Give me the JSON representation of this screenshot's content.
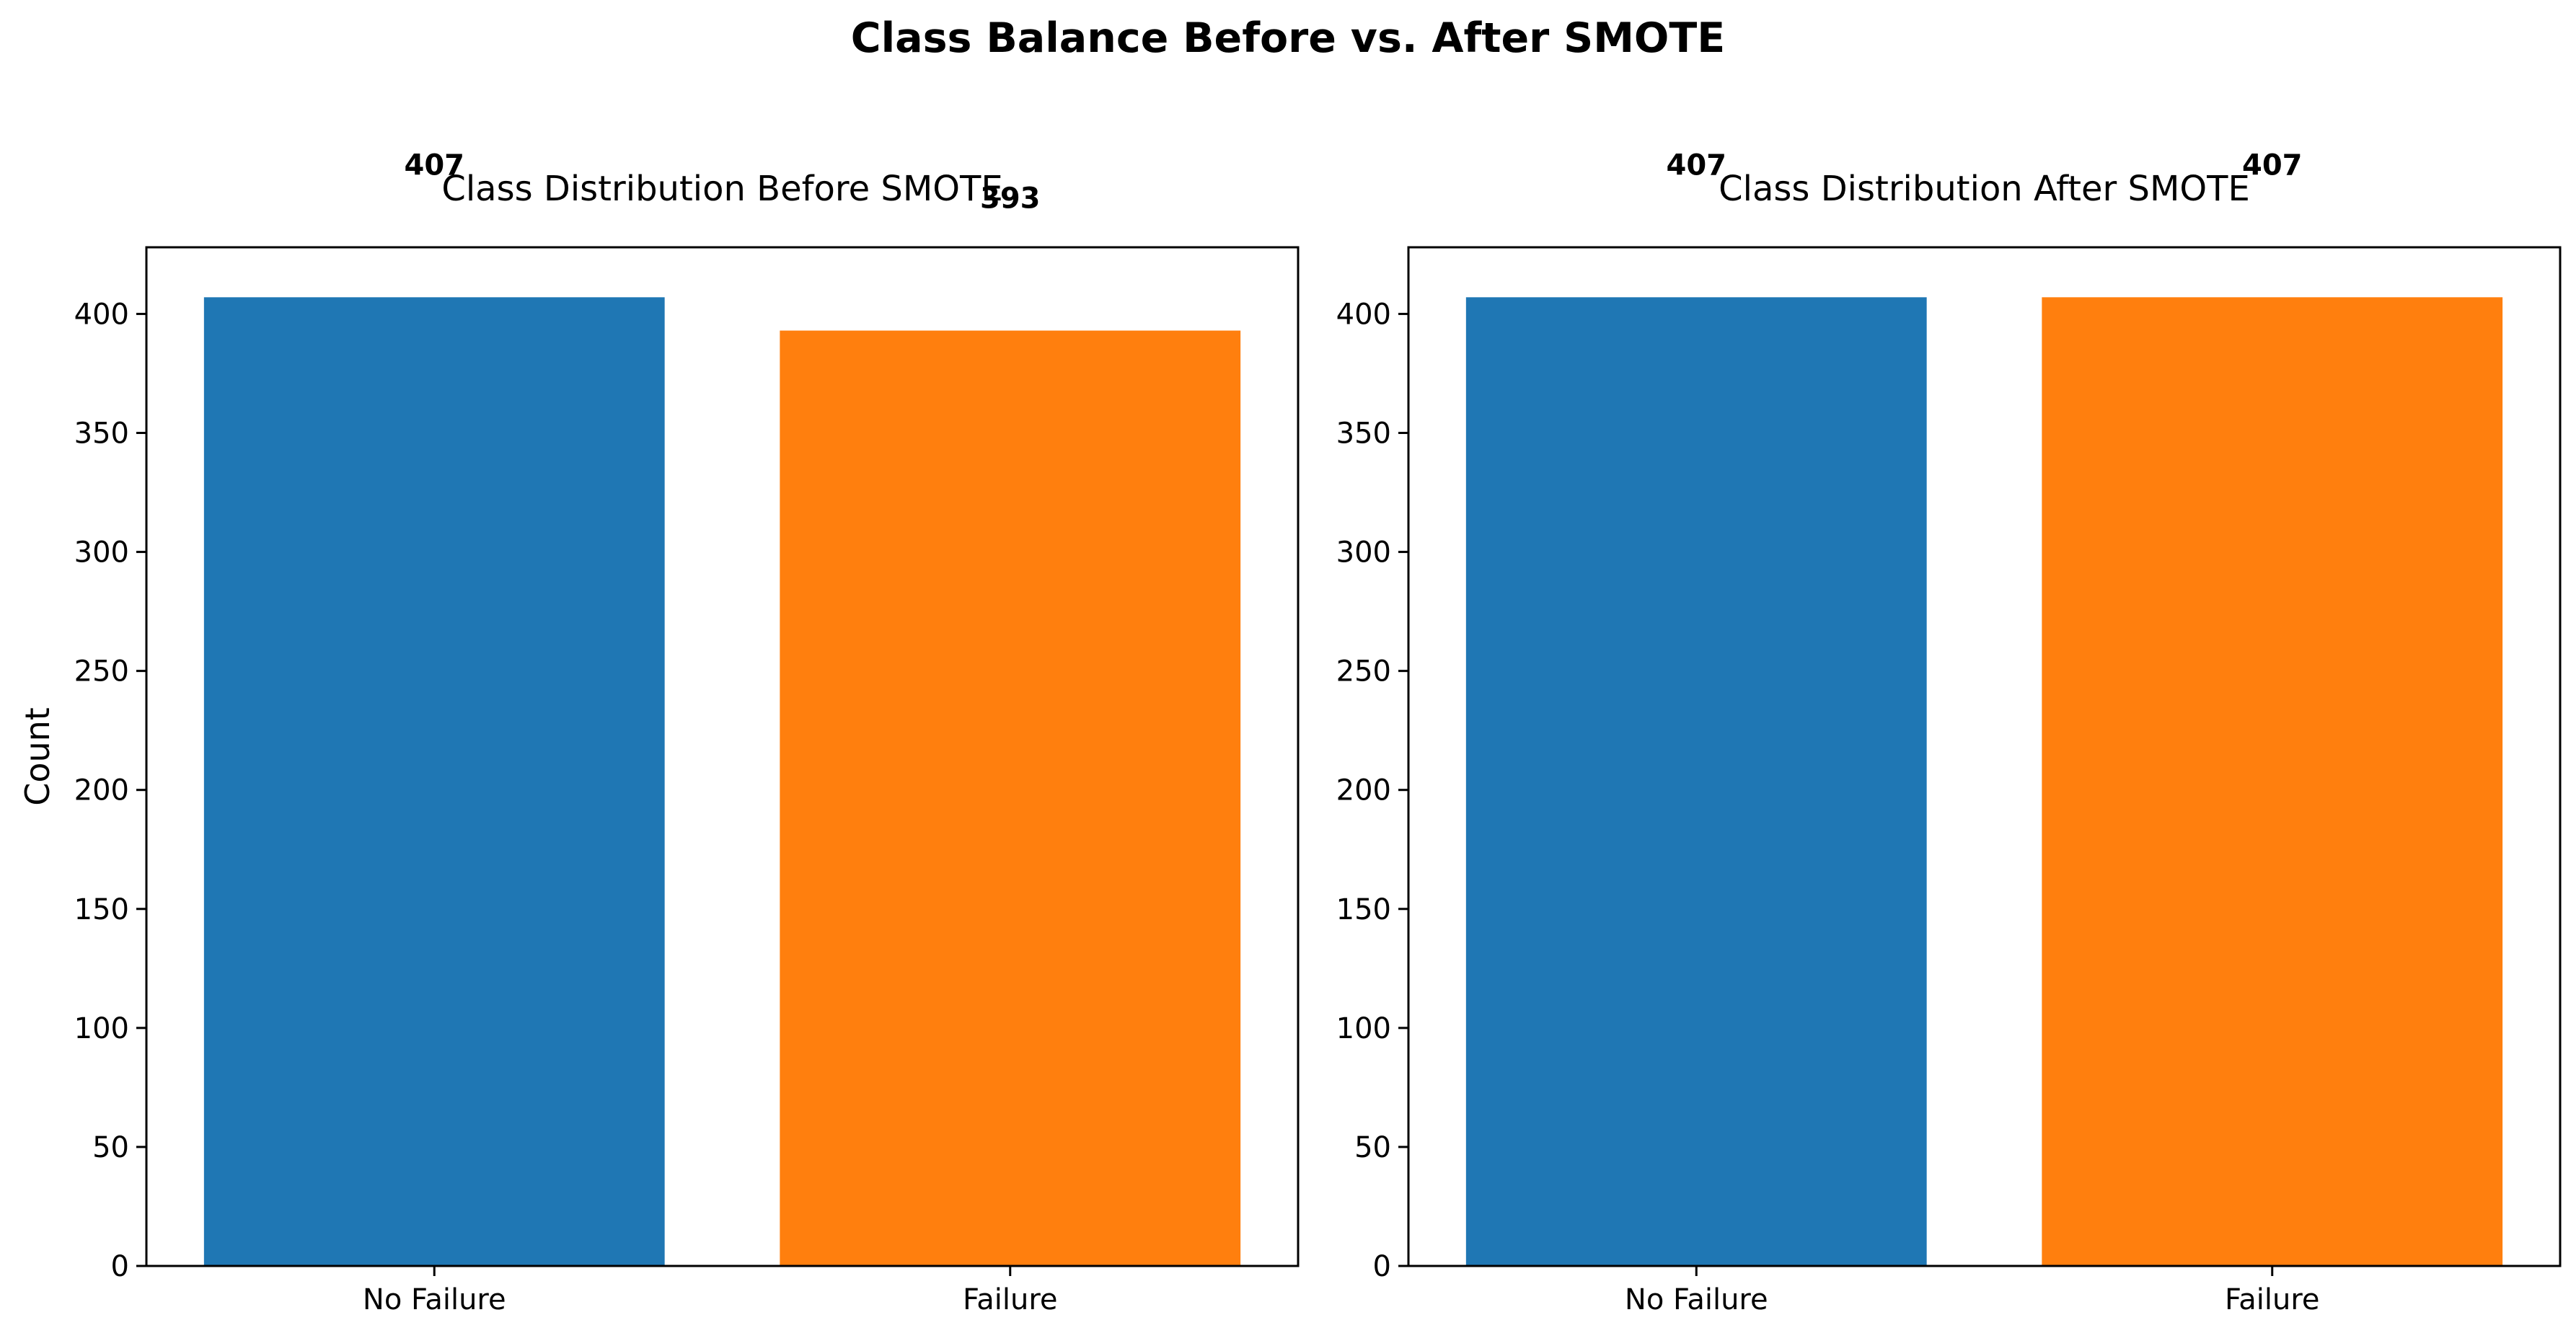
{
  "figure": {
    "title": "Class Balance Before vs. After SMOTE"
  },
  "chart_data": [
    {
      "type": "bar",
      "title": "Class Distribution Before SMOTE",
      "xlabel": "",
      "ylabel": "Count",
      "categories": [
        "No Failure",
        "Failure"
      ],
      "values": [
        407,
        393
      ],
      "data_labels": [
        "407",
        "393"
      ],
      "colors": [
        "#1f77b4",
        "#ff7f0e"
      ],
      "ylim": [
        0,
        428
      ],
      "yticks": [
        0,
        50,
        100,
        150,
        200,
        250,
        300,
        350,
        400
      ],
      "grid": false
    },
    {
      "type": "bar",
      "title": "Class Distribution After SMOTE",
      "xlabel": "",
      "ylabel": "",
      "categories": [
        "No Failure",
        "Failure"
      ],
      "values": [
        407,
        407
      ],
      "data_labels": [
        "407",
        "407"
      ],
      "colors": [
        "#1f77b4",
        "#ff7f0e"
      ],
      "ylim": [
        0,
        428
      ],
      "yticks": [
        0,
        50,
        100,
        150,
        200,
        250,
        300,
        350,
        400
      ],
      "grid": false
    }
  ]
}
